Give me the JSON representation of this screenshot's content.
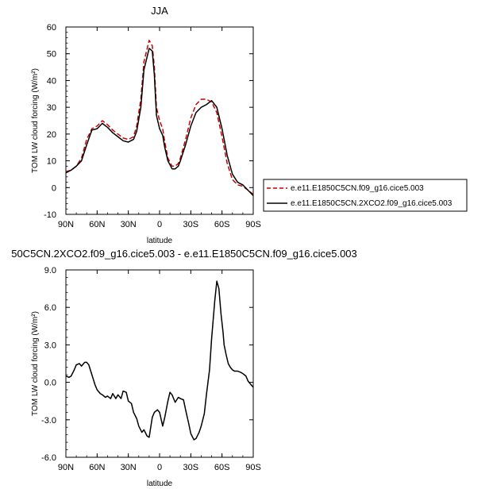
{
  "chart_data": [
    {
      "type": "line",
      "title": "JJA",
      "xlabel": "latitude",
      "ylabel": "TOM LW cloud forcing (W/m²)",
      "xlim": [
        90,
        -90
      ],
      "ylim": [
        -10,
        60
      ],
      "xticks": [
        {
          "value": 90,
          "label": "90N"
        },
        {
          "value": 60,
          "label": "60N"
        },
        {
          "value": 30,
          "label": "30N"
        },
        {
          "value": 0,
          "label": "0"
        },
        {
          "value": -30,
          "label": "30S"
        },
        {
          "value": -60,
          "label": "60S"
        },
        {
          "value": -90,
          "label": "90S"
        }
      ],
      "yticks": [
        {
          "value": -10,
          "label": "-10"
        },
        {
          "value": 0,
          "label": "0"
        },
        {
          "value": 10,
          "label": "10"
        },
        {
          "value": 20,
          "label": "20"
        },
        {
          "value": 30,
          "label": "30"
        },
        {
          "value": 40,
          "label": "40"
        },
        {
          "value": 50,
          "label": "50"
        },
        {
          "value": 60,
          "label": "60"
        }
      ],
      "legend_position": "right",
      "series": [
        {
          "name": "e.e11.E1850C5CN.f09_g16.cice5.003",
          "color": "#cc0000",
          "dash": "dashed",
          "x": [
            90,
            85,
            80,
            75,
            70,
            65,
            60,
            55,
            50,
            45,
            40,
            35,
            30,
            25,
            22,
            18,
            15,
            10,
            7,
            5,
            3,
            0,
            -3,
            -5,
            -8,
            -12,
            -15,
            -18,
            -20,
            -25,
            -30,
            -35,
            -40,
            -45,
            -50,
            -55,
            -60,
            -65,
            -70,
            -75,
            -80,
            -85,
            -90
          ],
          "y": [
            6,
            6.5,
            8,
            11,
            18,
            22,
            23,
            25,
            23.5,
            21.5,
            20,
            18.5,
            18,
            19,
            23,
            33,
            47,
            55,
            53,
            45,
            30,
            25,
            22,
            17,
            11,
            8,
            8,
            9,
            11,
            18,
            26,
            31,
            33,
            33,
            32,
            28,
            19,
            9,
            3,
            1,
            0.5,
            -1,
            -2.5
          ]
        },
        {
          "name": "e.e11.E1850C5CN.2XCO2.f09_g16.cice5.003",
          "color": "#000000",
          "dash": "solid",
          "x": [
            90,
            85,
            80,
            75,
            70,
            65,
            60,
            55,
            50,
            45,
            40,
            35,
            30,
            25,
            22,
            18,
            15,
            10,
            7,
            5,
            3,
            0,
            -3,
            -5,
            -8,
            -12,
            -15,
            -18,
            -20,
            -25,
            -30,
            -35,
            -40,
            -45,
            -50,
            -55,
            -60,
            -65,
            -70,
            -75,
            -80,
            -85,
            -90
          ],
          "y": [
            5.5,
            6.5,
            8,
            10,
            16,
            21.5,
            22,
            24,
            22.5,
            20.5,
            19,
            17.5,
            17,
            18,
            21,
            30,
            44,
            52,
            51,
            42,
            27,
            22,
            19.5,
            15,
            10,
            7,
            7,
            8,
            10,
            16,
            23,
            28,
            30,
            31,
            32.5,
            30,
            22,
            12,
            5,
            2,
            1,
            -1,
            -3
          ]
        }
      ]
    },
    {
      "type": "line",
      "title": "50C5CN.2XCO2.f09_g16.cice5.003 - e.e11.E1850C5CN.f09_g16.cice5.003",
      "xlabel": "latitude",
      "ylabel": "TOM LW cloud forcing (W/m²)",
      "xlim": [
        90,
        -90
      ],
      "ylim": [
        -6,
        9
      ],
      "xticks": [
        {
          "value": 90,
          "label": "90N"
        },
        {
          "value": 60,
          "label": "60N"
        },
        {
          "value": 30,
          "label": "30N"
        },
        {
          "value": 0,
          "label": "0"
        },
        {
          "value": -30,
          "label": "30S"
        },
        {
          "value": -60,
          "label": "60S"
        },
        {
          "value": -90,
          "label": "90S"
        }
      ],
      "yticks": [
        {
          "value": -6,
          "label": "-6.0"
        },
        {
          "value": -3,
          "label": "-3.0"
        },
        {
          "value": 0,
          "label": "0.0"
        },
        {
          "value": 3,
          "label": "3.0"
        },
        {
          "value": 6,
          "label": "6.0"
        },
        {
          "value": 9,
          "label": "9.0"
        }
      ],
      "series": [
        {
          "color": "#000000",
          "dash": "solid",
          "x": [
            90,
            87,
            85,
            82,
            80,
            77,
            75,
            72,
            70,
            68,
            65,
            62,
            60,
            57,
            55,
            52,
            50,
            47,
            45,
            42,
            40,
            37,
            35,
            32,
            30,
            27,
            25,
            22,
            20,
            17,
            15,
            12,
            10,
            7,
            5,
            2,
            0,
            -3,
            -5,
            -8,
            -10,
            -12,
            -15,
            -18,
            -20,
            -23,
            -25,
            -28,
            -30,
            -33,
            -35,
            -38,
            -40,
            -43,
            -45,
            -48,
            -50,
            -53,
            -55,
            -57,
            -59,
            -61,
            -62,
            -64,
            -66,
            -68,
            -70,
            -72,
            -75,
            -78,
            -80,
            -83,
            -85,
            -88,
            -90
          ],
          "y": [
            0.5,
            0.4,
            0.5,
            1.0,
            1.4,
            1.5,
            1.3,
            1.6,
            1.6,
            1.4,
            0.6,
            -0.2,
            -0.6,
            -0.9,
            -1.0,
            -1.2,
            -1.1,
            -1.3,
            -0.9,
            -1.3,
            -1.0,
            -1.3,
            -0.7,
            -0.8,
            -1.5,
            -1.7,
            -2.4,
            -2.9,
            -3.5,
            -4.0,
            -3.8,
            -4.3,
            -4.4,
            -2.8,
            -2.4,
            -2.2,
            -2.4,
            -3.5,
            -2.8,
            -1.5,
            -0.8,
            -1.0,
            -1.6,
            -1.2,
            -1.3,
            -1.4,
            -2.2,
            -3.3,
            -4.1,
            -4.6,
            -4.5,
            -4.0,
            -3.5,
            -2.5,
            -1.0,
            1.0,
            3.5,
            6.5,
            8.1,
            7.5,
            5.5,
            4.0,
            3.0,
            2.2,
            1.5,
            1.2,
            1.0,
            0.9,
            0.9,
            0.8,
            0.7,
            0.5,
            0.1,
            -0.2,
            -0.4
          ]
        }
      ]
    }
  ]
}
